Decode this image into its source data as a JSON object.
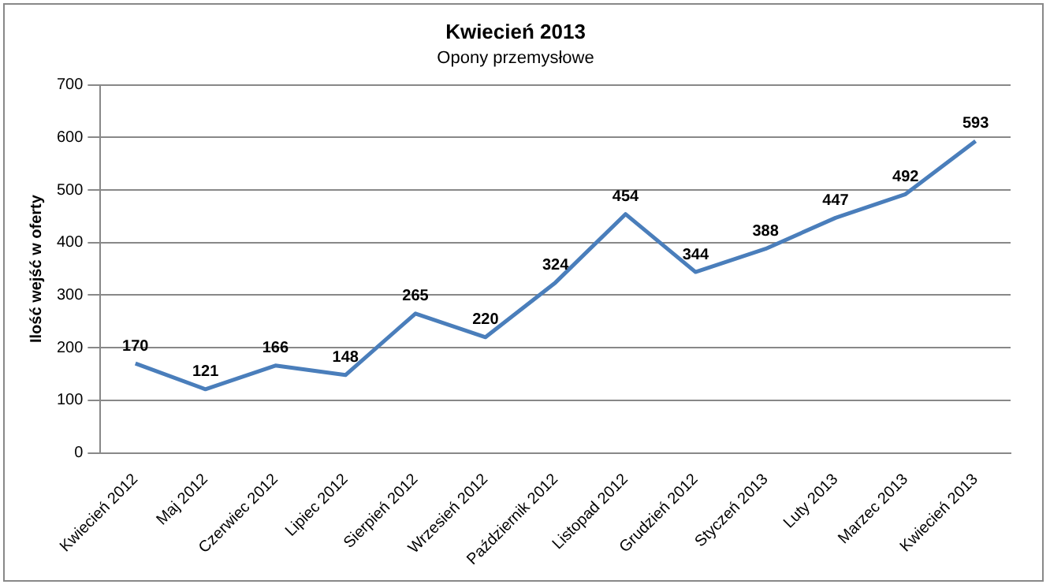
{
  "chart_data": {
    "type": "line",
    "title": "Kwiecień 2013",
    "subtitle": "Opony przemysłowe",
    "ylabel": "Ilość wejść w oferty",
    "categories": [
      "Kwiecień 2012",
      "Maj 2012",
      "Czerwiec 2012",
      "Lipiec 2012",
      "Sierpień 2012",
      "Wrzesień 2012",
      "Październik 2012",
      "Listopad 2012",
      "Grudzień 2012",
      "Styczeń 2013",
      "Luty 2013",
      "Marzec 2013",
      "Kwiecień 2013"
    ],
    "series": [
      {
        "color": "#4a7ebb",
        "values": [
          170,
          121,
          166,
          148,
          265,
          220,
          324,
          454,
          344,
          388,
          447,
          492,
          593
        ]
      }
    ],
    "ylim": [
      0,
      700
    ],
    "yticks": [
      0,
      100,
      200,
      300,
      400,
      500,
      600,
      700
    ],
    "grid": "y",
    "legend": false,
    "data_labels": true,
    "marker": "none",
    "line_style": "solid"
  }
}
